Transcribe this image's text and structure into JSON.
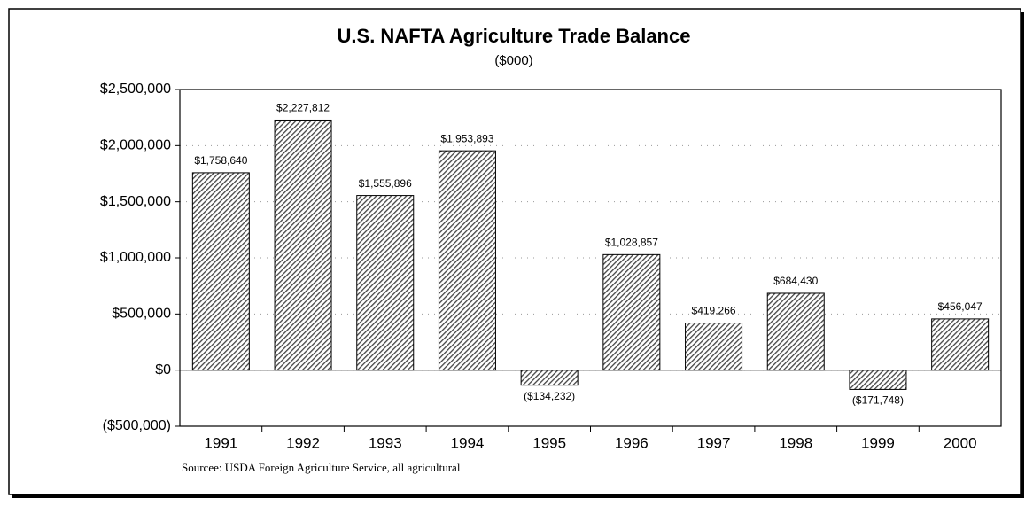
{
  "chart_data": {
    "type": "bar",
    "title": "U.S. NAFTA Agriculture Trade Balance",
    "subtitle": "($000)",
    "note": "Sourcee: USDA Foreign Agriculture Service, all agricultural",
    "categories": [
      "1991",
      "1992",
      "1993",
      "1994",
      "1995",
      "1996",
      "1997",
      "1998",
      "1999",
      "2000"
    ],
    "values": [
      1758640,
      2227812,
      1555896,
      1953893,
      -134232,
      1028857,
      419266,
      684430,
      -171748,
      456047
    ],
    "value_labels": [
      "$1,758,640",
      "$2,227,812",
      "$1,555,896",
      "$1,953,893",
      "($134,232)",
      "$1,028,857",
      "$419,266",
      "$684,430",
      "($171,748)",
      "$456,047"
    ],
    "color": "#444444",
    "ylim": [
      -500000,
      2500000
    ],
    "yticks": [
      {
        "value": -500000,
        "label": "($500,000)"
      },
      {
        "value": 0,
        "label": "$0"
      },
      {
        "value": 500000,
        "label": "$500,000"
      },
      {
        "value": 1000000,
        "label": "$1,000,000"
      },
      {
        "value": 1500000,
        "label": "$1,500,000"
      },
      {
        "value": 2000000,
        "label": "$2,000,000"
      },
      {
        "value": 2500000,
        "label": "$2,500,000"
      }
    ],
    "grid": true
  }
}
